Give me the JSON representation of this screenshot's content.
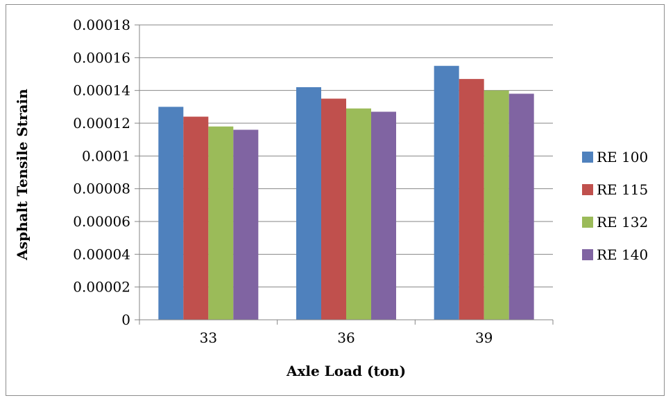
{
  "chart_data": {
    "type": "bar",
    "title": "",
    "xlabel": "Axle Load (ton)",
    "ylabel": "Asphalt Tensile Strain",
    "categories": [
      "33",
      "36",
      "39"
    ],
    "series": [
      {
        "name": "RE 100",
        "color": "#4F81BD",
        "values": [
          0.00013,
          0.000142,
          0.000155
        ]
      },
      {
        "name": "RE 115",
        "color": "#C0504D",
        "values": [
          0.000124,
          0.000135,
          0.000147
        ]
      },
      {
        "name": "RE 132",
        "color": "#9BBB59",
        "values": [
          0.000118,
          0.000129,
          0.00014
        ]
      },
      {
        "name": "RE 140",
        "color": "#8064A2",
        "values": [
          0.000116,
          0.000127,
          0.000138
        ]
      }
    ],
    "ylim": [
      0,
      0.00018
    ],
    "yticks": [
      "0",
      "0.00002",
      "0.00004",
      "0.00006",
      "0.00008",
      "0.0001",
      "0.00012",
      "0.00014",
      "0.00016",
      "0.00018"
    ],
    "grid": true,
    "legend_position": "right"
  }
}
